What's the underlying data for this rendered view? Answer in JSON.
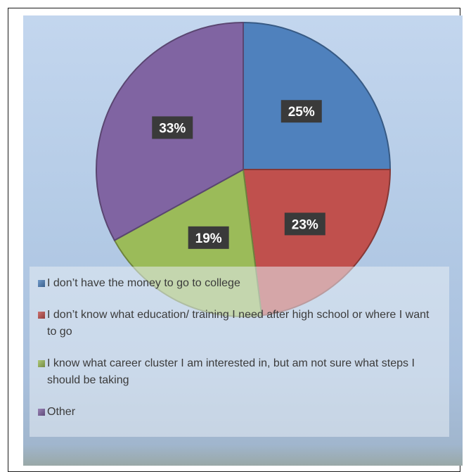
{
  "chart_data": {
    "type": "pie",
    "categories": [
      "I don’t have the money to go to college",
      "I don’t know what education/ training I need after high school or where I want to go",
      "I know what career cluster I am interested in, but am not sure what steps I should be taking",
      "Other"
    ],
    "values": [
      25,
      23,
      19,
      33
    ],
    "data_labels": [
      "25%",
      "23%",
      "19%",
      "33%"
    ],
    "colors": [
      "#4f81bd",
      "#c0504d",
      "#9bbb59",
      "#8064a2"
    ],
    "legend_position": "bottom",
    "title": ""
  }
}
